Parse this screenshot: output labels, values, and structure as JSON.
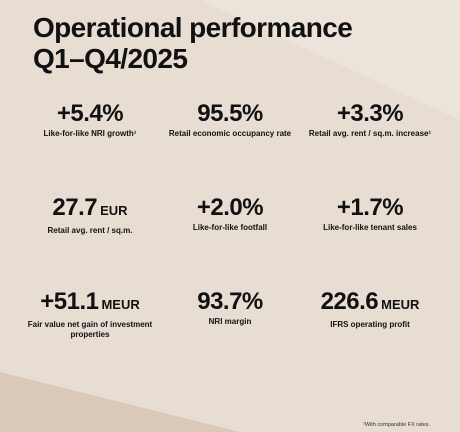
{
  "title_line1": "Operational performance",
  "title_line2": "Q1–Q4/2025",
  "metrics": [
    {
      "value": "+5.4%",
      "unit": "",
      "label": "Like-for-like NRI growth¹"
    },
    {
      "value": "95.5%",
      "unit": "",
      "label": "Retail economic occupancy rate"
    },
    {
      "value": "+3.3%",
      "unit": "",
      "label": "Retail avg. rent / sq.m. increase¹"
    },
    {
      "value": "27.7",
      "unit": "EUR",
      "label": "Retail avg. rent / sq.m."
    },
    {
      "value": "+2.0%",
      "unit": "",
      "label": "Like-for-like footfall"
    },
    {
      "value": "+1.7%",
      "unit": "",
      "label": "Like-for-like tenant sales"
    },
    {
      "value": "+51.1",
      "unit": "MEUR",
      "label": "Fair value net gain of investment properties"
    },
    {
      "value": "93.7%",
      "unit": "",
      "label": "NRI margin"
    },
    {
      "value": "226.6",
      "unit": "MEUR",
      "label": "IFRS operating profit"
    }
  ],
  "footnote": "¹With comparable FX rates.",
  "colors": {
    "background": "#e7ddd2",
    "text": "#111111"
  }
}
